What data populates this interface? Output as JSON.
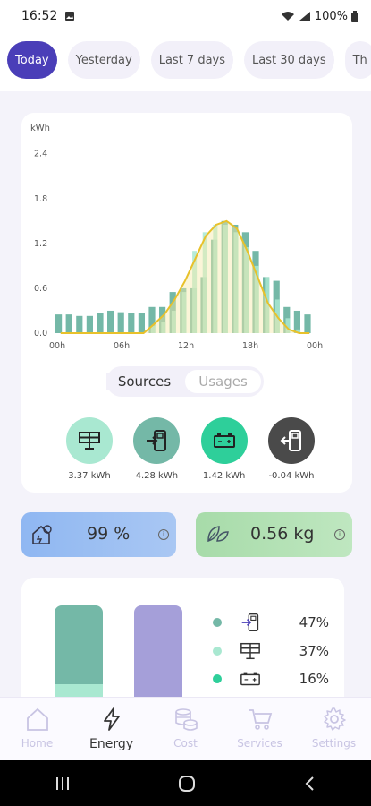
{
  "status": {
    "time": "16:52",
    "battery": "100%"
  },
  "periods": [
    {
      "label": "Today",
      "active": true
    },
    {
      "label": "Yesterday"
    },
    {
      "label": "Last 7 days"
    },
    {
      "label": "Last 30 days"
    },
    {
      "label": "Th"
    }
  ],
  "chart_data": {
    "type": "bar",
    "ylabel": "kWh",
    "ylim": [
      0,
      2.6
    ],
    "yticks": [
      "0.0",
      "0.6",
      "1.2",
      "1.8",
      "2.4"
    ],
    "xticks": [
      "00h",
      "06h",
      "12h",
      "18h",
      "00h"
    ],
    "series": [
      {
        "values": [
          0.25,
          0.25,
          0.23,
          0.23,
          0.27,
          0.3,
          0.28,
          0.27,
          0.27,
          0.35,
          0.35,
          0.55,
          0.6,
          0.6,
          0.75,
          1.25,
          1.5,
          1.45,
          1.35,
          1.1,
          0.75,
          0.7,
          0.35,
          0.3,
          0.25
        ]
      },
      {
        "values": [
          0.0,
          0.0,
          0.0,
          0.0,
          0.0,
          0.0,
          0.0,
          0.0,
          0.0,
          0.1,
          0.15,
          0.3,
          0.55,
          1.1,
          1.35,
          1.45,
          1.45,
          1.35,
          1.15,
          0.9,
          0.75,
          0.45,
          0.2,
          0.05,
          0.0
        ]
      }
    ],
    "line": [
      0.0,
      0.0,
      0.0,
      0.0,
      0.0,
      0.0,
      0.0,
      0.0,
      0.0,
      0.12,
      0.25,
      0.45,
      0.7,
      1.0,
      1.3,
      1.45,
      1.5,
      1.4,
      1.1,
      0.75,
      0.4,
      0.2,
      0.05,
      0.0,
      0.0
    ]
  },
  "toggle": {
    "sources": "Sources",
    "usages": "Usages"
  },
  "sources": [
    {
      "icon": "solar-panel-icon",
      "value": "3.37 kWh",
      "color": "#a9e8d1"
    },
    {
      "icon": "grid-import-icon",
      "value": "4.28 kWh",
      "color": "#74b8a7"
    },
    {
      "icon": "battery-icon",
      "value": "1.42 kWh",
      "color": "#2ecf9a"
    },
    {
      "icon": "grid-export-icon",
      "value": "-0.04 kWh",
      "color": "#4a4a4a"
    }
  ],
  "metrics": {
    "autonomy": "99 %",
    "co2": "0.56 kg"
  },
  "share": [
    {
      "dot": "#74b8a7",
      "icon": "grid-import-icon",
      "pct": "47%"
    },
    {
      "dot": "#a9e8d1",
      "icon": "solar-panel-icon",
      "pct": "37%"
    },
    {
      "dot": "#2ecf9a",
      "icon": "battery-icon",
      "pct": "16%"
    }
  ],
  "nav": [
    {
      "label": "Home",
      "icon": "home-icon"
    },
    {
      "label": "Energy",
      "icon": "bolt-icon",
      "active": true
    },
    {
      "label": "Cost",
      "icon": "coins-icon"
    },
    {
      "label": "Services",
      "icon": "cart-icon"
    },
    {
      "label": "Settings",
      "icon": "gear-icon"
    }
  ]
}
